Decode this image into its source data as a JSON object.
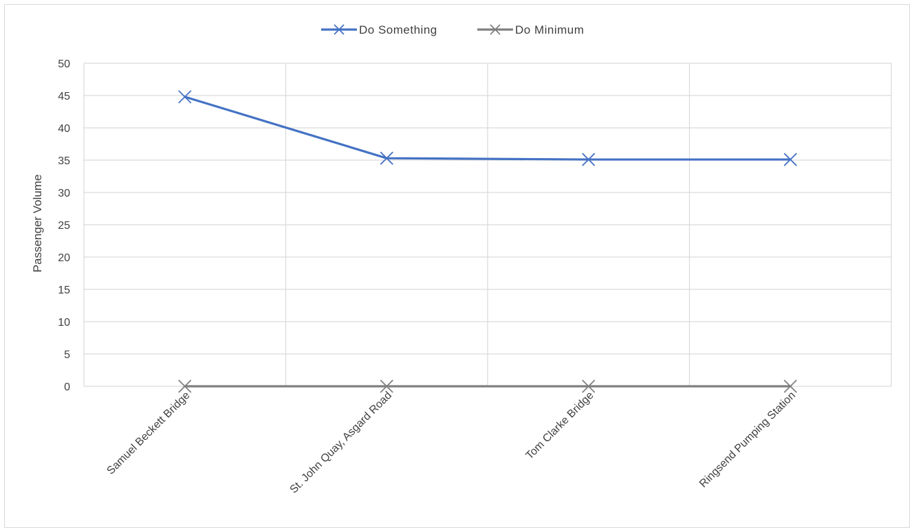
{
  "chart_data": {
    "type": "line",
    "title": "",
    "xlabel": "",
    "ylabel": "Passenger Volume",
    "categories": [
      "Samuel Beckett Bridge",
      "St. John Quay, Asgard Road",
      "Tom Clarke Bridge",
      "Ringsend Pumping Station"
    ],
    "series": [
      {
        "name": "Do Something",
        "values": [
          44.8,
          35.3,
          35.1,
          35.1
        ],
        "color": "#4472c4",
        "marker": "x"
      },
      {
        "name": "Do Minimum",
        "values": [
          0,
          0,
          0,
          0
        ],
        "color": "#7f7f7f",
        "marker": "x"
      }
    ],
    "ylim": [
      0,
      50
    ],
    "yticks": [
      "0",
      "5",
      "10",
      "15",
      "20",
      "25",
      "30",
      "35",
      "40",
      "45",
      "50"
    ],
    "grid": true,
    "legend_position": "top"
  }
}
